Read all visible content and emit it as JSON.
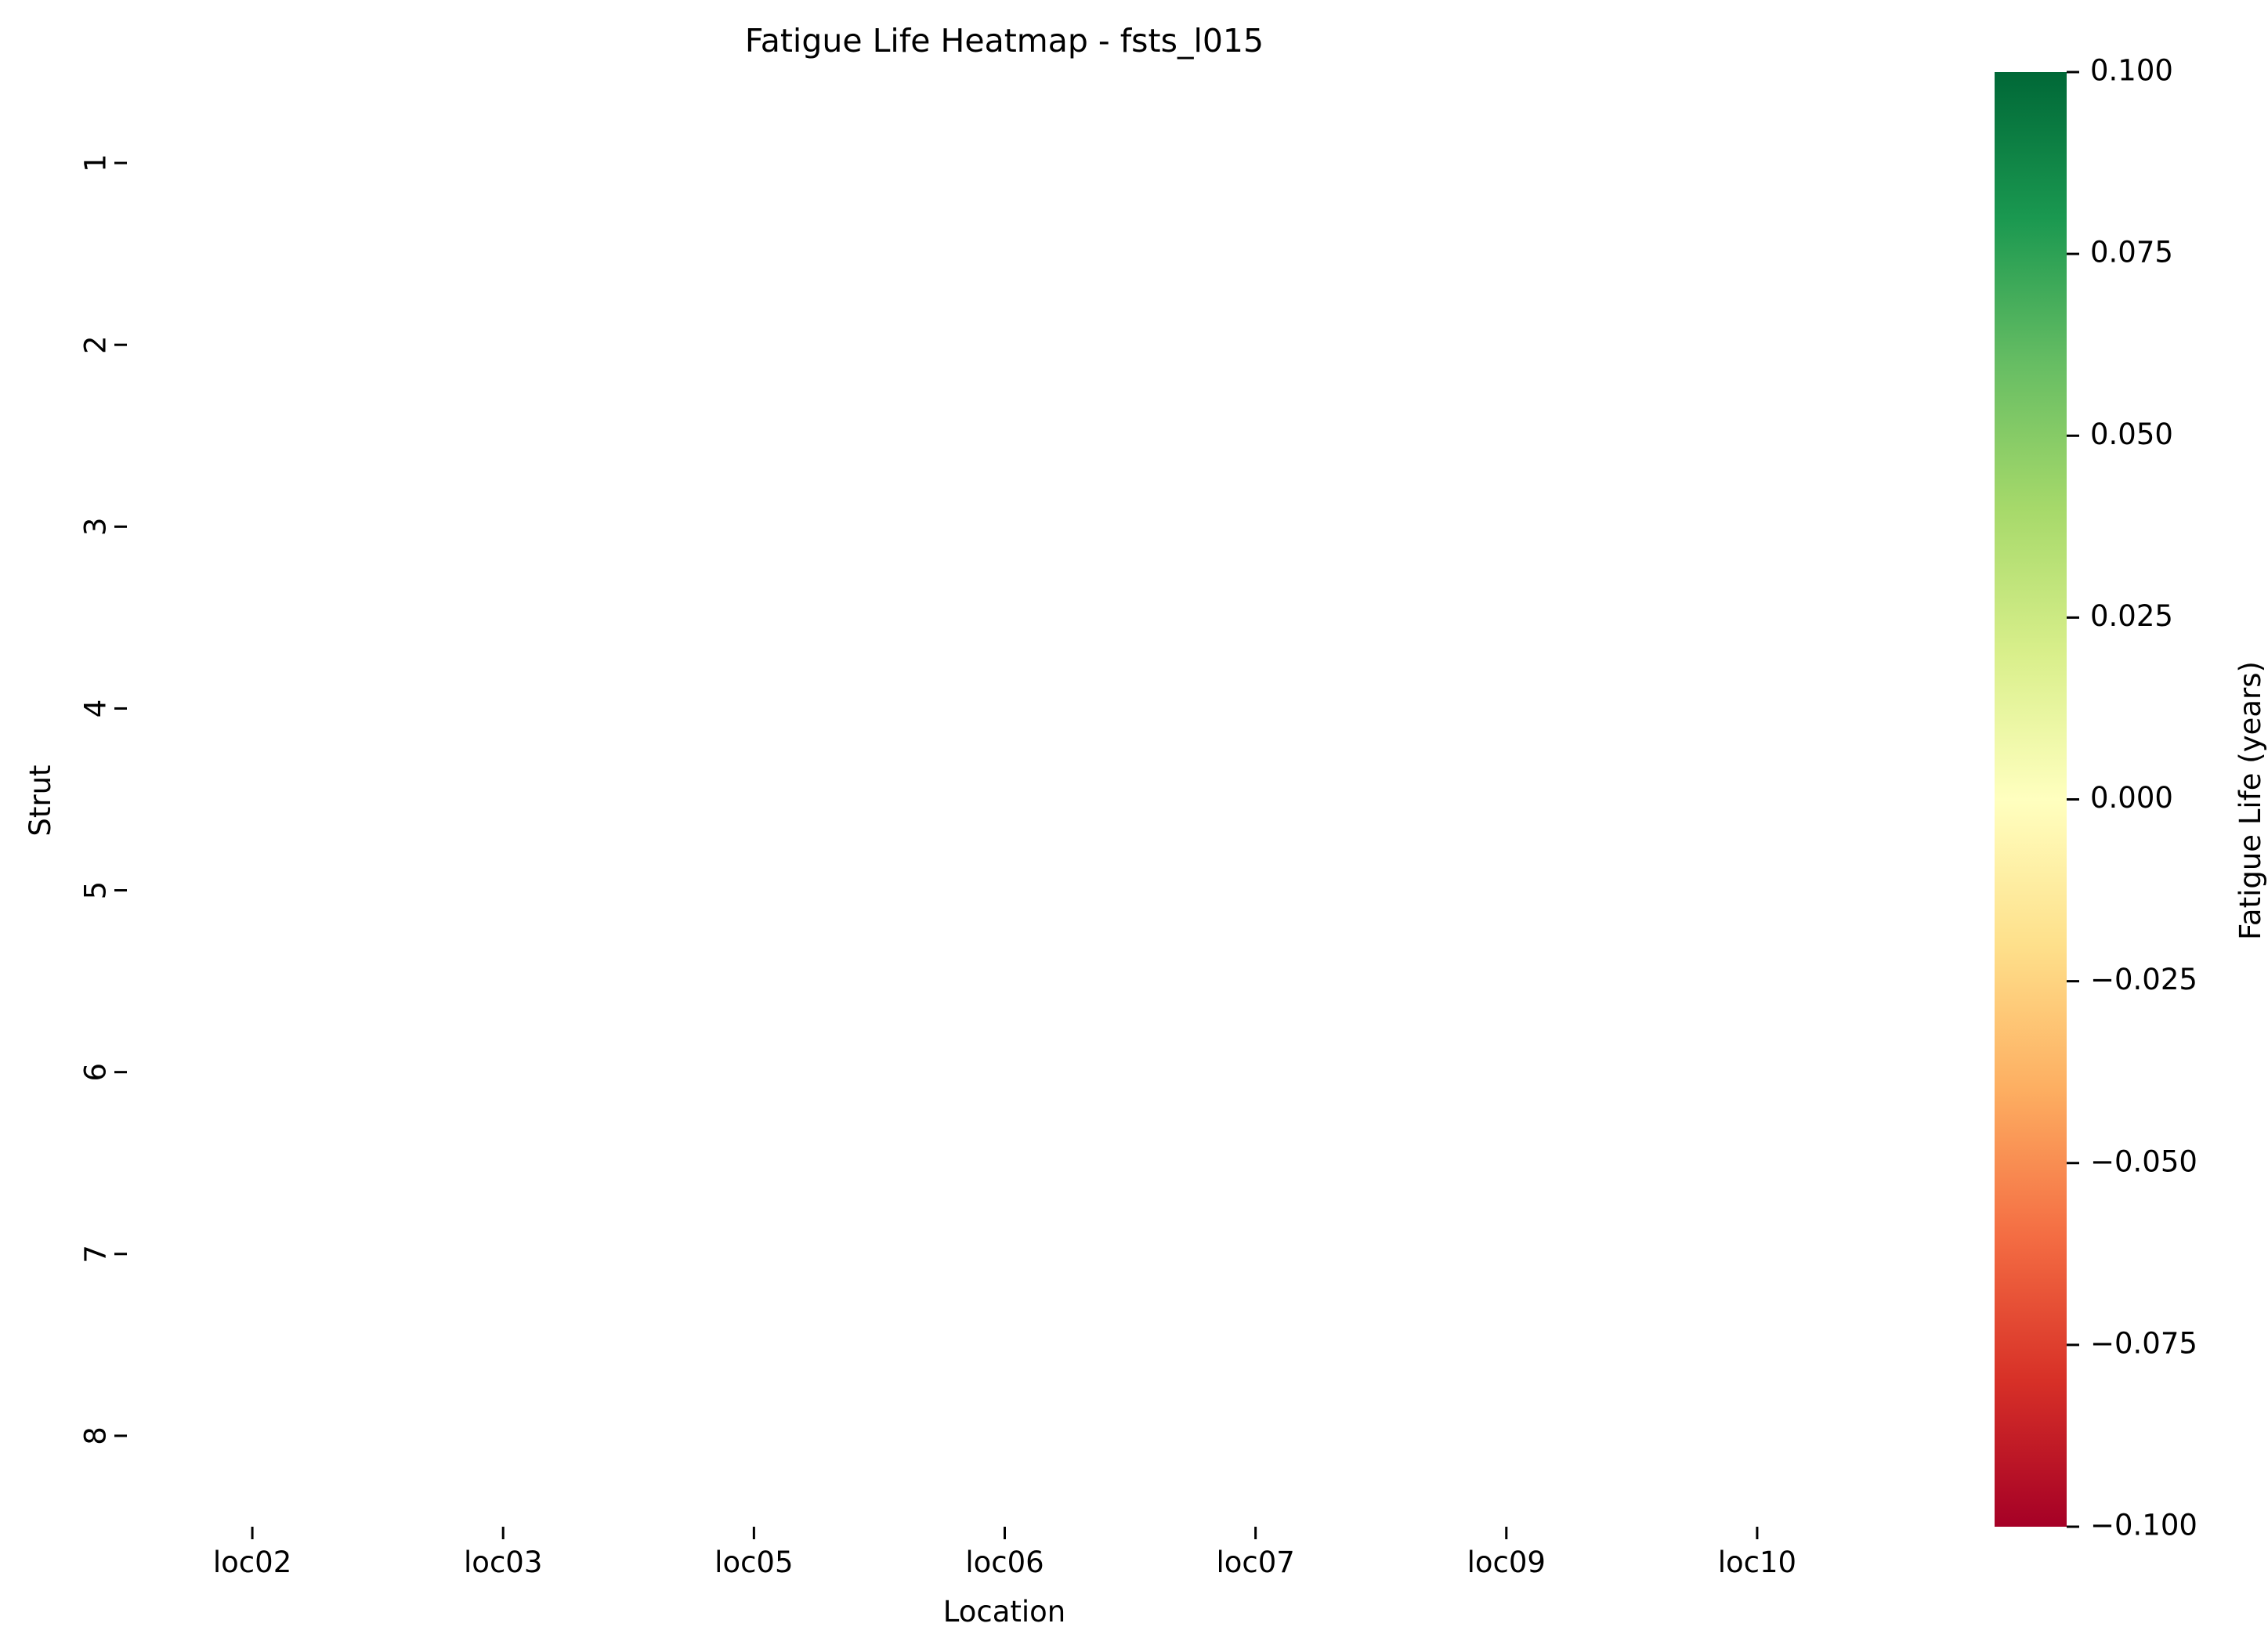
{
  "chart_data": {
    "type": "heatmap",
    "title": "Fatigue Life Heatmap - fsts_l015",
    "xlabel": "Location",
    "ylabel": "Strut",
    "x_categories": [
      "loc02",
      "loc03",
      "loc05",
      "loc06",
      "loc07",
      "loc09",
      "loc10"
    ],
    "y_categories": [
      "1",
      "2",
      "3",
      "4",
      "5",
      "6",
      "7",
      "8"
    ],
    "values": [
      [
        null,
        null,
        null,
        null,
        null,
        null,
        null
      ],
      [
        null,
        null,
        null,
        null,
        null,
        null,
        null
      ],
      [
        null,
        null,
        null,
        null,
        null,
        null,
        null
      ],
      [
        null,
        null,
        null,
        null,
        null,
        null,
        null
      ],
      [
        null,
        null,
        null,
        null,
        null,
        null,
        null
      ],
      [
        null,
        null,
        null,
        null,
        null,
        null,
        null
      ],
      [
        null,
        null,
        null,
        null,
        null,
        null,
        null
      ],
      [
        null,
        null,
        null,
        null,
        null,
        null,
        null
      ]
    ],
    "colorbar": {
      "label": "Fatigue Life (years)",
      "colormap": "RdYlGn",
      "range": [
        -0.1,
        0.1
      ],
      "ticks": [
        "0.100",
        "0.075",
        "0.050",
        "0.025",
        "0.000",
        "−0.025",
        "−0.050",
        "−0.075",
        "−0.100"
      ],
      "colors": [
        "#a50026",
        "#d73027",
        "#f46d43",
        "#fdae61",
        "#fee08b",
        "#ffffbf",
        "#d9ef8b",
        "#a6d96a",
        "#66bd63",
        "#1a9850",
        "#006837"
      ]
    },
    "grid": false,
    "legend": "colorbar-right"
  }
}
